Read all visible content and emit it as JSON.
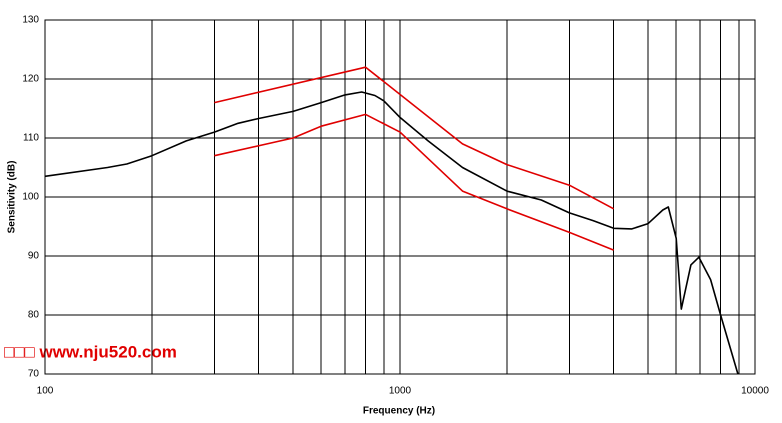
{
  "chart_data": {
    "type": "line",
    "xlabel": "Frequency (Hz)",
    "ylabel": "Sensitivity (dB)",
    "annotation": "□□□ www.nju520.com",
    "xscale": "log",
    "grid": true,
    "xlim": [
      100,
      10000
    ],
    "ylim": [
      70,
      130
    ],
    "xticks": [
      100,
      1000,
      10000
    ],
    "xminor": [
      200,
      300,
      400,
      500,
      600,
      700,
      800,
      900,
      2000,
      3000,
      4000,
      5000,
      6000,
      7000,
      8000,
      9000
    ],
    "yticks": [
      70,
      80,
      90,
      100,
      110,
      120,
      130
    ],
    "series": [
      {
        "color": "#000000",
        "x": [
          100,
          150,
          170,
          200,
          250,
          300,
          350,
          400,
          500,
          600,
          700,
          780,
          850,
          900,
          1000,
          1200,
          1500,
          2000,
          2500,
          3000,
          3500,
          4000,
          4500,
          5000,
          5500,
          5700,
          6000,
          6200,
          6600,
          6950,
          7500,
          8000,
          8950
        ],
        "values": [
          103.5,
          105,
          105.6,
          107,
          109.5,
          111,
          112.5,
          113.3,
          114.5,
          116,
          117.3,
          117.8,
          117.2,
          116.3,
          113.5,
          109.5,
          105,
          101,
          99.5,
          97.3,
          96,
          94.7,
          94.6,
          95.5,
          97.8,
          98.3,
          93,
          81,
          88.5,
          89.8,
          86,
          80,
          70
        ]
      },
      {
        "color": "#e00000",
        "x": [
          300,
          800,
          1500,
          2000,
          3000,
          4000
        ],
        "values": [
          116,
          122,
          109,
          105.5,
          102,
          98
        ]
      },
      {
        "color": "#e00000",
        "x": [
          300,
          500,
          600,
          800,
          1000,
          1500,
          2000,
          3000,
          4000
        ],
        "values": [
          107,
          110,
          112,
          114,
          111,
          101,
          98,
          94,
          91
        ]
      }
    ]
  }
}
